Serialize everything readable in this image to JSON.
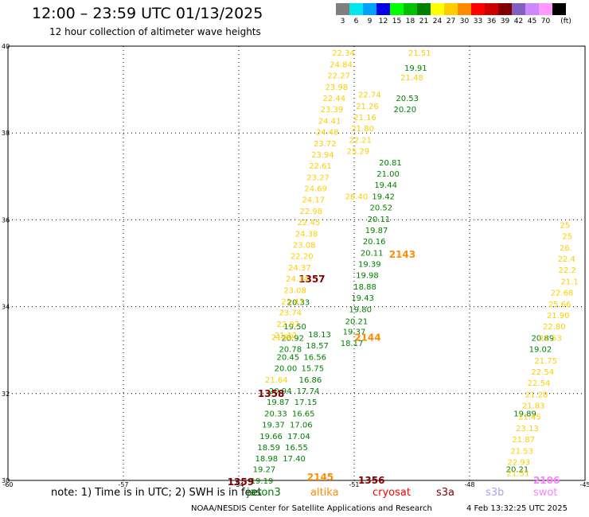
{
  "header": {
    "title": "12:00 – 23:59 UTC 01/13/2025",
    "subtitle": "12 hour collection of altimeter wave heights"
  },
  "colorbar": {
    "unit_label": "(ft)",
    "levels": [
      {
        "label": "3",
        "color": "#7f7f7f"
      },
      {
        "label": "6",
        "color": "#00e5ee"
      },
      {
        "label": "9",
        "color": "#00a0ff"
      },
      {
        "label": "12",
        "color": "#0000e6"
      },
      {
        "label": "15",
        "color": "#00ff00"
      },
      {
        "label": "18",
        "color": "#00c000"
      },
      {
        "label": "21",
        "color": "#008000"
      },
      {
        "label": "24",
        "color": "#ffff00"
      },
      {
        "label": "27",
        "color": "#ffcc00"
      },
      {
        "label": "30",
        "color": "#ff8c00"
      },
      {
        "label": "33",
        "color": "#ff0000"
      },
      {
        "label": "36",
        "color": "#cc0000"
      },
      {
        "label": "39",
        "color": "#800000"
      },
      {
        "label": "42",
        "color": "#8060c0"
      },
      {
        "label": "45",
        "color": "#cc88ff"
      },
      {
        "label": "70",
        "color": "#ff99ff"
      },
      {
        "label": "",
        "color": "#000000"
      }
    ]
  },
  "footer": {
    "note": "note:  1) Time is in UTC;  2) SWH is in feet",
    "satellites": [
      {
        "label": "jason3",
        "color": "#008000"
      },
      {
        "label": "altika",
        "color": "#ff8c00"
      },
      {
        "label": "cryosat",
        "color": "#ff0000"
      },
      {
        "label": "s3a",
        "color": "#800000"
      },
      {
        "label": "s3b",
        "color": "#b0a0f0"
      },
      {
        "label": "swot",
        "color": "#ff80ff"
      }
    ],
    "credit": "NOAA/NESDIS Center for Satellite Applications and Research",
    "timestamp": "4 Feb 13:32:25 UTC 2025"
  },
  "chart_data": {
    "type": "scatter",
    "title": "12:00 – 23:59 UTC 01/13/2025",
    "subtitle": "12 hour collection of altimeter wave heights",
    "xlim": [
      -60,
      -45
    ],
    "ylim": [
      30,
      40
    ],
    "grid": true,
    "x_ticks": [
      "-60",
      "-57",
      "-54",
      "-51",
      "-48",
      "-45"
    ],
    "y_ticks": [
      "30",
      "32",
      "34",
      "36",
      "38",
      "40"
    ],
    "value_unit": "ft",
    "series": [
      {
        "name": "jason3",
        "color": "#008000",
        "points": [
          {
            "x": -53.4,
            "y": 30.0,
            "label": "19.19"
          },
          {
            "x": -53.34,
            "y": 30.27,
            "label": "19.27"
          },
          {
            "x": -53.28,
            "y": 30.51,
            "label": "18.98"
          },
          {
            "x": -53.22,
            "y": 30.77,
            "label": "18.59"
          },
          {
            "x": -53.16,
            "y": 31.03,
            "label": "19.66"
          },
          {
            "x": -53.1,
            "y": 31.29,
            "label": "19.37"
          },
          {
            "x": -53.04,
            "y": 31.55,
            "label": "20.33"
          },
          {
            "x": -52.98,
            "y": 31.81,
            "label": "19.87"
          },
          {
            "x": -52.92,
            "y": 32.07,
            "label": "20.94"
          },
          {
            "x": -52.78,
            "y": 32.59,
            "label": "20.00"
          },
          {
            "x": -52.72,
            "y": 32.85,
            "label": "20.45"
          },
          {
            "x": -52.66,
            "y": 33.03,
            "label": "20.78"
          },
          {
            "x": -52.6,
            "y": 33.29,
            "label": "20.92"
          },
          {
            "x": -52.54,
            "y": 33.55,
            "label": "19.50"
          },
          {
            "x": -52.45,
            "y": 34.11,
            "label": "20.33"
          },
          {
            "x": -51.06,
            "y": 33.17,
            "label": "18.17"
          },
          {
            "x": -51.0,
            "y": 33.43,
            "label": "19.37"
          },
          {
            "x": -50.94,
            "y": 33.67,
            "label": "20.21"
          },
          {
            "x": -50.84,
            "y": 33.95,
            "label": "19.80"
          },
          {
            "x": -50.78,
            "y": 34.21,
            "label": "19.43"
          },
          {
            "x": -50.72,
            "y": 34.47,
            "label": "18.88"
          },
          {
            "x": -50.66,
            "y": 34.73,
            "label": "19.98"
          },
          {
            "x": -50.6,
            "y": 34.99,
            "label": "19.39"
          },
          {
            "x": -50.54,
            "y": 35.25,
            "label": "20.11"
          },
          {
            "x": -50.48,
            "y": 35.51,
            "label": "20.16"
          },
          {
            "x": -50.42,
            "y": 35.77,
            "label": "19.87"
          },
          {
            "x": -50.36,
            "y": 36.03,
            "label": "20.11"
          },
          {
            "x": -50.3,
            "y": 36.29,
            "label": "20.52"
          },
          {
            "x": -50.24,
            "y": 36.55,
            "label": "19.42"
          },
          {
            "x": -50.18,
            "y": 36.81,
            "label": "19.44"
          },
          {
            "x": -50.12,
            "y": 37.07,
            "label": "21.00"
          },
          {
            "x": -50.06,
            "y": 37.33,
            "label": "20.81"
          },
          {
            "x": -49.68,
            "y": 38.55,
            "label": "20.20"
          },
          {
            "x": -49.62,
            "y": 38.81,
            "label": "20.53"
          },
          {
            "x": -49.4,
            "y": 39.51,
            "label": "19.91"
          },
          {
            "x": -52.56,
            "y": 30.51,
            "label": "17.40"
          },
          {
            "x": -52.5,
            "y": 30.77,
            "label": "16.55"
          },
          {
            "x": -52.44,
            "y": 31.03,
            "label": "17.04"
          },
          {
            "x": -52.38,
            "y": 31.29,
            "label": "17.06"
          },
          {
            "x": -52.32,
            "y": 31.55,
            "label": "16.65"
          },
          {
            "x": -52.26,
            "y": 31.81,
            "label": "17.15"
          },
          {
            "x": -52.2,
            "y": 32.07,
            "label": "17.74"
          },
          {
            "x": -52.14,
            "y": 32.33,
            "label": "16.86"
          },
          {
            "x": -52.08,
            "y": 32.59,
            "label": "15.75"
          },
          {
            "x": -52.02,
            "y": 32.85,
            "label": "16.56"
          },
          {
            "x": -51.96,
            "y": 33.11,
            "label": "18.57"
          },
          {
            "x": -51.9,
            "y": 33.37,
            "label": "18.13"
          },
          {
            "x": -46.76,
            "y": 30.27,
            "label": "20.21"
          },
          {
            "x": -46.56,
            "y": 31.55,
            "label": "19.89"
          },
          {
            "x": -46.16,
            "y": 33.03,
            "label": "19.02"
          },
          {
            "x": -46.1,
            "y": 33.29,
            "label": "20.89"
          }
        ]
      },
      {
        "name": "s3a",
        "color": "#800000",
        "points": [
          {
            "x": -50.55,
            "y": 30.0,
            "label": "1356"
          },
          {
            "x": -52.1,
            "y": 34.63,
            "label": "1357"
          },
          {
            "x": -53.16,
            "y": 32.0,
            "label": "1358"
          },
          {
            "x": -53.95,
            "y": 29.96,
            "label": "1359"
          }
        ]
      },
      {
        "name": "altika",
        "color": "#ff8c00",
        "points": [
          {
            "x": -49.75,
            "y": 35.2,
            "label": "2143"
          },
          {
            "x": -50.65,
            "y": 33.29,
            "label": "2144"
          },
          {
            "x": -51.88,
            "y": 30.07,
            "label": "2145"
          }
        ]
      },
      {
        "name": "swot",
        "color": "#ff80ff",
        "points": [
          {
            "x": -46.0,
            "y": 30.0,
            "label": "2106"
          }
        ]
      },
      {
        "name": "altika_swh",
        "color": "#ffcc00",
        "points": [
          {
            "x": -51.28,
            "y": 39.85,
            "label": "22.34"
          },
          {
            "x": -51.34,
            "y": 39.59,
            "label": "24.84"
          },
          {
            "x": -51.4,
            "y": 39.33,
            "label": "22.27"
          },
          {
            "x": -51.46,
            "y": 39.07,
            "label": "23.98"
          },
          {
            "x": -51.52,
            "y": 38.81,
            "label": "22.44"
          },
          {
            "x": -51.58,
            "y": 38.55,
            "label": "23.39"
          },
          {
            "x": -51.64,
            "y": 38.29,
            "label": "24.41"
          },
          {
            "x": -51.7,
            "y": 38.03,
            "label": "24.48"
          },
          {
            "x": -51.76,
            "y": 37.77,
            "label": "23.72"
          },
          {
            "x": -51.82,
            "y": 37.51,
            "label": "23.94"
          },
          {
            "x": -51.88,
            "y": 37.25,
            "label": "22.61"
          },
          {
            "x": -51.94,
            "y": 36.99,
            "label": "23.27"
          },
          {
            "x": -52.0,
            "y": 36.73,
            "label": "24.69"
          },
          {
            "x": -52.06,
            "y": 36.47,
            "label": "24.17"
          },
          {
            "x": -52.12,
            "y": 36.21,
            "label": "22.98"
          },
          {
            "x": -52.18,
            "y": 35.95,
            "label": "22.45"
          },
          {
            "x": -52.24,
            "y": 35.69,
            "label": "24.38"
          },
          {
            "x": -52.3,
            "y": 35.43,
            "label": "23.08"
          },
          {
            "x": -52.36,
            "y": 35.17,
            "label": "22.20"
          },
          {
            "x": -52.42,
            "y": 34.91,
            "label": "24.37"
          },
          {
            "x": -52.48,
            "y": 34.65,
            "label": "24.34"
          },
          {
            "x": -52.54,
            "y": 34.39,
            "label": "23.08"
          },
          {
            "x": -52.6,
            "y": 34.13,
            "label": "22.47"
          },
          {
            "x": -52.66,
            "y": 33.87,
            "label": "23.74"
          },
          {
            "x": -52.72,
            "y": 33.61,
            "label": "22.97"
          },
          {
            "x": -52.78,
            "y": 33.35,
            "label": "21.12"
          },
          {
            "x": -52.86,
            "y": 33.31,
            "label": "21.82"
          },
          {
            "x": -53.02,
            "y": 32.33,
            "label": "21.64"
          },
          {
            "x": -50.94,
            "y": 36.55,
            "label": "26.40"
          },
          {
            "x": -50.9,
            "y": 37.59,
            "label": "25.29"
          },
          {
            "x": -50.84,
            "y": 37.85,
            "label": "22.21"
          },
          {
            "x": -50.78,
            "y": 38.11,
            "label": "21.80"
          },
          {
            "x": -50.72,
            "y": 38.37,
            "label": "21.16"
          },
          {
            "x": -50.66,
            "y": 38.63,
            "label": "21.26"
          },
          {
            "x": -50.6,
            "y": 38.89,
            "label": "22.74"
          },
          {
            "x": -49.5,
            "y": 39.29,
            "label": "21.48"
          },
          {
            "x": -49.3,
            "y": 39.85,
            "label": "21.51"
          },
          {
            "x": -45.52,
            "y": 35.89,
            "label": "25"
          },
          {
            "x": -45.46,
            "y": 35.63,
            "label": "25"
          },
          {
            "x": -45.5,
            "y": 35.37,
            "label": "26."
          },
          {
            "x": -45.48,
            "y": 35.11,
            "label": "22.4"
          },
          {
            "x": -45.46,
            "y": 34.85,
            "label": "22.2"
          },
          {
            "x": -45.4,
            "y": 34.59,
            "label": "21.1"
          },
          {
            "x": -45.6,
            "y": 34.33,
            "label": "22.68"
          },
          {
            "x": -45.66,
            "y": 34.07,
            "label": "25.66"
          },
          {
            "x": -45.7,
            "y": 33.81,
            "label": "21.90"
          },
          {
            "x": -45.8,
            "y": 33.55,
            "label": "22.80"
          },
          {
            "x": -45.9,
            "y": 33.29,
            "label": "21.53"
          },
          {
            "x": -46.02,
            "y": 32.77,
            "label": "21.75"
          },
          {
            "x": -46.1,
            "y": 32.51,
            "label": "22.54"
          },
          {
            "x": -46.2,
            "y": 32.25,
            "label": "22.54"
          },
          {
            "x": -46.26,
            "y": 31.99,
            "label": "21.28"
          },
          {
            "x": -46.34,
            "y": 31.73,
            "label": "21.83"
          },
          {
            "x": -46.44,
            "y": 31.47,
            "label": "21.45"
          },
          {
            "x": -46.5,
            "y": 31.21,
            "label": "23.13"
          },
          {
            "x": -46.6,
            "y": 30.95,
            "label": "21.87"
          },
          {
            "x": -46.64,
            "y": 30.69,
            "label": "21.53"
          },
          {
            "x": -46.72,
            "y": 30.43,
            "label": "22.93"
          },
          {
            "x": -46.74,
            "y": 30.17,
            "label": "21.51"
          }
        ]
      }
    ]
  }
}
